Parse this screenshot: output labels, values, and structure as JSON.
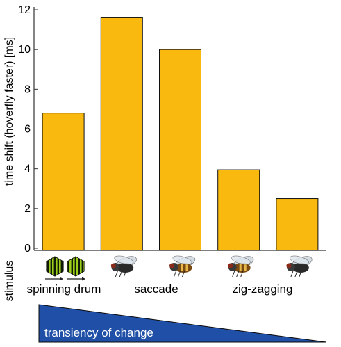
{
  "chart_data": {
    "type": "bar",
    "title": "",
    "xlabel": "",
    "ylabel": "time shift (hoverfly faster) [ms]",
    "ylim": [
      0,
      12
    ],
    "yticks": [
      "0",
      "2",
      "4",
      "6",
      "8",
      "10",
      "12"
    ],
    "grid": false,
    "bar_color": "#F9B90F",
    "values": [
      6.8,
      11.6,
      10.0,
      3.95,
      2.5
    ],
    "stimulus_icons": [
      "grating-drum-icon",
      "fly-icon",
      "hoverfly-icon",
      "hoverfly-icon",
      "fly-icon"
    ],
    "stimulus_label": "stimulus",
    "group_labels": [
      "spinning drum",
      "saccade",
      "zig-zagging"
    ],
    "gradient_label": "transiency of change",
    "gradient_color": "#1F4FA6"
  }
}
